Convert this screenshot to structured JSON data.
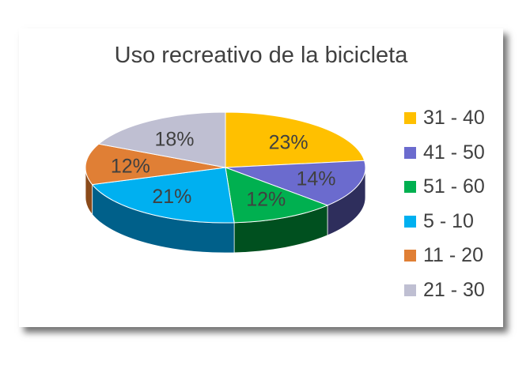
{
  "chart_data": {
    "type": "pie",
    "style": "3d",
    "title": "Uso recreativo de la bicicleta",
    "legend_position": "right",
    "slices": [
      {
        "label": "31 - 40",
        "value": 23,
        "display": "23%",
        "color": "#FFC000",
        "side_color": "#B38600"
      },
      {
        "label": "41 - 50",
        "value": 14,
        "display": "14%",
        "color": "#6B6BCE",
        "side_color": "#2E2E5C"
      },
      {
        "label": "51 - 60",
        "value": 12,
        "display": "12%",
        "color": "#00B050",
        "side_color": "#00501F"
      },
      {
        "label": "5 - 10",
        "value": 21,
        "display": "21%",
        "color": "#00B0F0",
        "side_color": "#00608A"
      },
      {
        "label": "11 - 20",
        "value": 12,
        "display": "12%",
        "color": "#E07F35",
        "side_color": "#8A4A1A"
      },
      {
        "label": "21 - 30",
        "value": 18,
        "display": "18%",
        "color": "#BFBFD2",
        "side_color": "#7A7A8C"
      }
    ]
  }
}
